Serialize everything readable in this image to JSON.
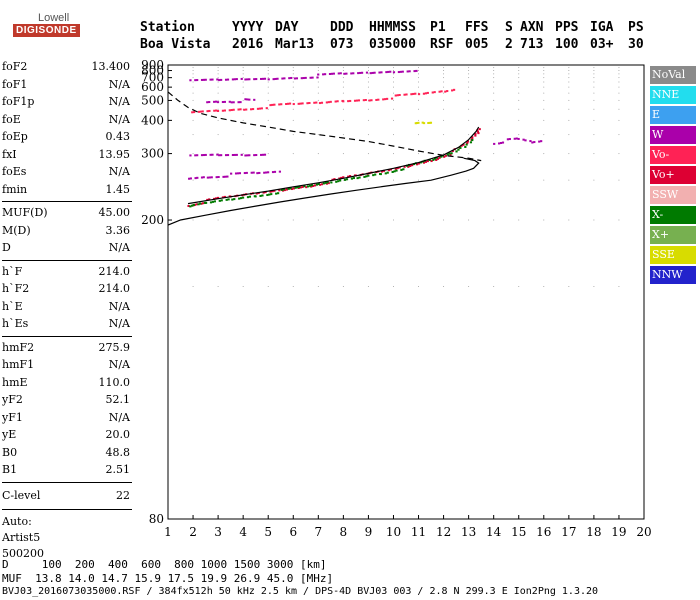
{
  "logo": {
    "top": "Lowell",
    "bottom": "DIGISONDE"
  },
  "header": {
    "labels": [
      "Station",
      "YYYY",
      "DAY",
      "DDD",
      "HHMMSS",
      "P1",
      "FFS",
      "S",
      "AXN",
      "PPS",
      "IGA",
      "PS"
    ],
    "values": [
      "Boa Vista",
      "2016",
      "Mar13",
      "073",
      "035000",
      "RSF",
      "005",
      "2",
      "713",
      "100",
      "03+",
      "30"
    ]
  },
  "params": {
    "group1": [
      {
        "name": "foF2",
        "value": "13.400"
      },
      {
        "name": "foF1",
        "value": "N/A"
      },
      {
        "name": "foF1p",
        "value": "N/A"
      },
      {
        "name": "foE",
        "value": "N/A"
      },
      {
        "name": "foEp",
        "value": "0.43"
      },
      {
        "name": "fxI",
        "value": "13.95"
      },
      {
        "name": "foEs",
        "value": "N/A"
      },
      {
        "name": "fmin",
        "value": "1.45"
      }
    ],
    "group2": [
      {
        "name": "MUF(D)",
        "value": "45.00"
      },
      {
        "name": "M(D)",
        "value": "3.36"
      },
      {
        "name": "D",
        "value": "N/A"
      }
    ],
    "group3": [
      {
        "name": "h`F",
        "value": "214.0"
      },
      {
        "name": "h`F2",
        "value": "214.0"
      },
      {
        "name": "h`E",
        "value": "N/A"
      },
      {
        "name": "h`Es",
        "value": "N/A"
      }
    ],
    "group4": [
      {
        "name": "hmF2",
        "value": "275.9"
      },
      {
        "name": "hmF1",
        "value": "N/A"
      },
      {
        "name": "hmE",
        "value": "110.0"
      },
      {
        "name": "yF2",
        "value": "52.1"
      },
      {
        "name": "yF1",
        "value": "N/A"
      },
      {
        "name": "yE",
        "value": "20.0"
      },
      {
        "name": "B0",
        "value": "48.8"
      },
      {
        "name": "B1",
        "value": "2.51"
      }
    ],
    "clevel": {
      "name": "C-level",
      "value": "22"
    },
    "auto": [
      "Auto:",
      "Artist5",
      "500200"
    ]
  },
  "legend": [
    {
      "label": "NoVal",
      "color": "#8a8a8a"
    },
    {
      "label": "NNE",
      "color": "#22ddee"
    },
    {
      "label": "E",
      "color": "#3da0f0"
    },
    {
      "label": "W",
      "color": "#aa00aa"
    },
    {
      "label": "Vo-",
      "color": "#ff2255"
    },
    {
      "label": "Vo+",
      "color": "#dd0033"
    },
    {
      "label": "SSW",
      "color": "#f2b0b0"
    },
    {
      "label": "X-",
      "color": "#007a00"
    },
    {
      "label": "X+",
      "color": "#77b050"
    },
    {
      "label": "SSE",
      "color": "#d8dc00"
    },
    {
      "label": "NNW",
      "color": "#2222cc"
    }
  ],
  "bottom": {
    "line1": "D     100  200  400  600  800 1000 1500 3000 [km]",
    "line2": "MUF  13.8 14.0 14.7 15.9 17.5 19.9 26.9 45.0 [MHz]",
    "line3": "BVJ03_2016073035000.RSF / 384fx512h 50 kHz 2.5 km / DPS-4D BVJ03 003 / 2.8 N 299.3 E Ion2Png 1.3.20"
  },
  "chart_data": {
    "type": "scatter",
    "xlabel": "",
    "ylabel": "",
    "x_ticks": [
      1,
      2,
      3,
      4,
      5,
      6,
      7,
      8,
      9,
      10,
      11,
      12,
      13,
      14,
      15,
      16,
      17,
      18,
      19,
      20
    ],
    "y_ticks": [
      80,
      200,
      300,
      400,
      500,
      600,
      700,
      800,
      900
    ],
    "y_scale": "reciprocal",
    "xlim": [
      1,
      20
    ],
    "ylim": [
      80,
      900
    ],
    "traces": [
      {
        "name": "W",
        "color": "#aa00aa",
        "points": [
          [
            1.9,
            665
          ],
          [
            3,
            675
          ],
          [
            4,
            690
          ],
          [
            5,
            700
          ],
          [
            6,
            720
          ],
          [
            7,
            735
          ],
          [
            8,
            755
          ],
          [
            9,
            775
          ],
          [
            10,
            800
          ],
          [
            11,
            825
          ]
        ]
      },
      {
        "name": "Vo-",
        "color": "#ff2255",
        "points": [
          [
            1.9,
            440
          ],
          [
            3,
            450
          ],
          [
            4,
            460
          ],
          [
            5,
            470
          ],
          [
            6,
            480
          ],
          [
            7,
            490
          ],
          [
            8,
            505
          ],
          [
            9,
            515
          ],
          [
            10,
            530
          ],
          [
            11,
            545
          ],
          [
            12,
            570
          ],
          [
            12.5,
            590
          ]
        ]
      },
      {
        "name": "Vo+",
        "color": "#dd0033",
        "points": [
          [
            1.8,
            218
          ],
          [
            2.5,
            222
          ],
          [
            3.5,
            227
          ],
          [
            4.5,
            232
          ],
          [
            5.5,
            237
          ],
          [
            6.5,
            243
          ],
          [
            7.5,
            250
          ],
          [
            8.5,
            258
          ],
          [
            9.5,
            266
          ],
          [
            10.5,
            276
          ],
          [
            11.5,
            289
          ],
          [
            12.3,
            305
          ],
          [
            12.8,
            322
          ],
          [
            13.1,
            340
          ],
          [
            13.3,
            360
          ],
          [
            13.4,
            378
          ]
        ]
      },
      {
        "name": "X-",
        "color": "#007a00",
        "points": [
          [
            1.8,
            215
          ],
          [
            2.5,
            220
          ],
          [
            3.5,
            225
          ],
          [
            4.5,
            230
          ],
          [
            5.5,
            235
          ],
          [
            6.5,
            241
          ],
          [
            7.5,
            248
          ],
          [
            8.5,
            256
          ],
          [
            9.5,
            264
          ],
          [
            10.5,
            274
          ],
          [
            11.5,
            287
          ],
          [
            12.3,
            303
          ],
          [
            12.8,
            320
          ],
          [
            13.2,
            345
          ]
        ]
      },
      {
        "name": "W",
        "color": "#aa00aa",
        "points": [
          [
            1.8,
            255
          ],
          [
            2.5,
            258
          ],
          [
            3.5,
            260
          ],
          [
            4.5,
            262
          ],
          [
            5.5,
            265
          ]
        ]
      },
      {
        "name": "W",
        "color": "#aa00aa",
        "points": [
          [
            1.9,
            295
          ],
          [
            3,
            297
          ],
          [
            4,
            298
          ],
          [
            5,
            300
          ]
        ]
      },
      {
        "name": "W",
        "color": "#aa00aa",
        "points": [
          [
            2.5,
            495
          ],
          [
            3,
            500
          ],
          [
            3.5,
            503
          ],
          [
            4,
            505
          ],
          [
            4.5,
            500
          ]
        ]
      },
      {
        "name": "W",
        "color": "#aa00aa",
        "points": [
          [
            14,
            330
          ],
          [
            14.5,
            335
          ],
          [
            15,
            338
          ],
          [
            15.5,
            330
          ],
          [
            16,
            335
          ]
        ]
      },
      {
        "name": "SSE",
        "color": "#d8dc00",
        "points": [
          [
            10.8,
            390
          ],
          [
            11.2,
            393
          ],
          [
            11.6,
            395
          ]
        ]
      }
    ],
    "curves": [
      {
        "name": "profile",
        "style": "solid",
        "color": "#000",
        "points": [
          [
            1,
            195
          ],
          [
            1.5,
            200
          ],
          [
            2.5,
            205
          ],
          [
            3.5,
            210
          ],
          [
            4.5,
            215
          ],
          [
            5.5,
            220
          ],
          [
            6.5,
            225
          ],
          [
            7.5,
            230
          ],
          [
            8.5,
            235
          ],
          [
            9.5,
            240
          ],
          [
            10.5,
            245
          ],
          [
            11.5,
            250
          ],
          [
            12.3,
            258
          ],
          [
            12.9,
            265
          ],
          [
            13.2,
            270
          ],
          [
            13.4,
            280
          ],
          [
            13.25,
            285
          ],
          [
            12.8,
            290
          ]
        ]
      },
      {
        "name": "trace-fit",
        "style": "solid",
        "color": "#000",
        "points": [
          [
            1.8,
            218
          ],
          [
            3,
            224
          ],
          [
            4,
            229
          ],
          [
            5,
            234
          ],
          [
            6,
            240
          ],
          [
            7,
            246
          ],
          [
            8,
            253
          ],
          [
            9,
            261
          ],
          [
            10,
            270
          ],
          [
            11,
            281
          ],
          [
            12,
            297
          ],
          [
            12.6,
            315
          ],
          [
            13,
            335
          ],
          [
            13.3,
            360
          ],
          [
            13.4,
            375
          ]
        ]
      },
      {
        "name": "dashed",
        "style": "dashed",
        "color": "#000",
        "points": [
          [
            1,
            560
          ],
          [
            1.4,
            500
          ],
          [
            1.8,
            460
          ],
          [
            2.3,
            430
          ],
          [
            3,
            410
          ],
          [
            4,
            390
          ],
          [
            5,
            375
          ],
          [
            6,
            360
          ],
          [
            7,
            350
          ],
          [
            8,
            340
          ],
          [
            9,
            330
          ],
          [
            10,
            318
          ],
          [
            11,
            306
          ],
          [
            12,
            296
          ],
          [
            13,
            290
          ],
          [
            13.5,
            285
          ]
        ]
      }
    ]
  }
}
